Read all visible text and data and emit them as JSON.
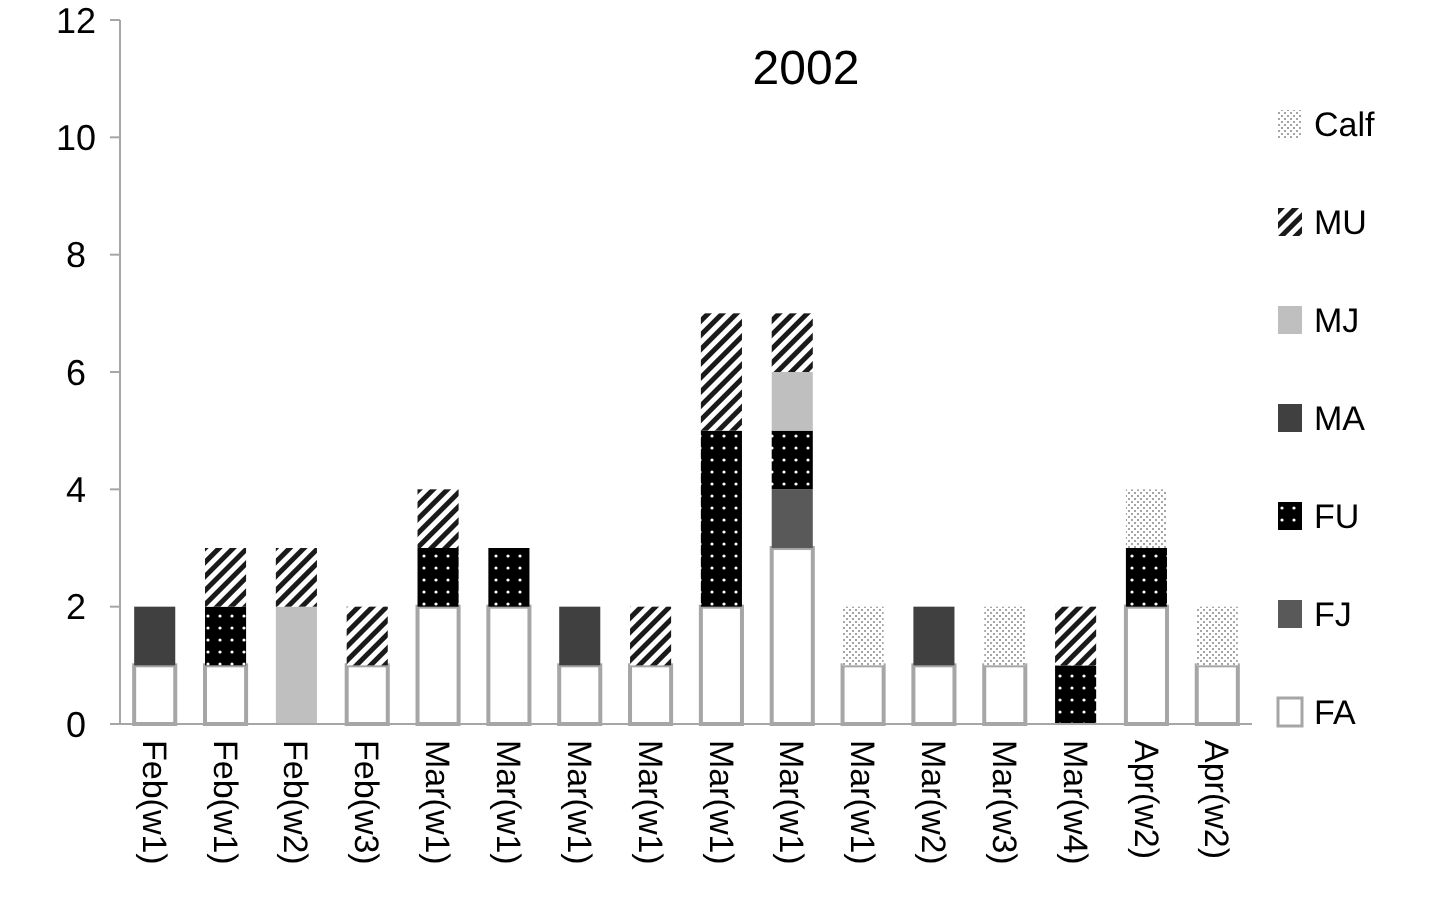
{
  "chart_data": {
    "type": "bar",
    "title": "2002",
    "stacked": true,
    "grid": false,
    "legend": "right",
    "categories": [
      "Feb(w1)",
      "Feb(w1)",
      "Feb(w2)",
      "Feb(w3)",
      "Mar(w1)",
      "Mar(w1)",
      "Mar(w1)",
      "Mar(w1)",
      "Mar(w1)",
      "Mar(w1)",
      "Mar(w1)",
      "Mar(w2)",
      "Mar(w3)",
      "Mar(w4)",
      "Apr(w2)",
      "Apr(w2)"
    ],
    "ylim": [
      0,
      12
    ],
    "yticks": [
      0,
      2,
      4,
      6,
      8,
      10,
      12
    ],
    "series": [
      {
        "name": "FA",
        "color": "#a6a6a6",
        "values": [
          1,
          1,
          0,
          1,
          2,
          2,
          1,
          1,
          2,
          3,
          1,
          1,
          1,
          0,
          2,
          1
        ]
      },
      {
        "name": "FJ",
        "color": "#595959",
        "values": [
          0,
          0,
          0,
          0,
          0,
          0,
          0,
          0,
          0,
          1,
          0,
          0,
          0,
          0,
          0,
          0
        ]
      },
      {
        "name": "FU",
        "color": "#000000",
        "values": [
          0,
          1,
          0,
          0,
          1,
          1,
          0,
          0,
          3,
          1,
          0,
          0,
          0,
          1,
          1,
          0
        ]
      },
      {
        "name": "MA",
        "color": "#404040",
        "values": [
          1,
          0,
          0,
          0,
          0,
          0,
          1,
          0,
          0,
          0,
          0,
          1,
          0,
          0,
          0,
          0
        ]
      },
      {
        "name": "MJ",
        "color": "#bfbfbf",
        "values": [
          0,
          0,
          2,
          0,
          0,
          0,
          0,
          0,
          0,
          1,
          0,
          0,
          0,
          0,
          0,
          0
        ]
      },
      {
        "name": "MU",
        "color": "#1a1a1a",
        "values": [
          0,
          1,
          1,
          1,
          1,
          0,
          0,
          1,
          2,
          1,
          0,
          0,
          0,
          1,
          0,
          0
        ]
      },
      {
        "name": "Calf",
        "color": "#a6a6a6",
        "values": [
          0,
          0,
          0,
          0,
          0,
          0,
          0,
          0,
          0,
          0,
          1,
          0,
          1,
          0,
          1,
          1
        ]
      }
    ]
  }
}
